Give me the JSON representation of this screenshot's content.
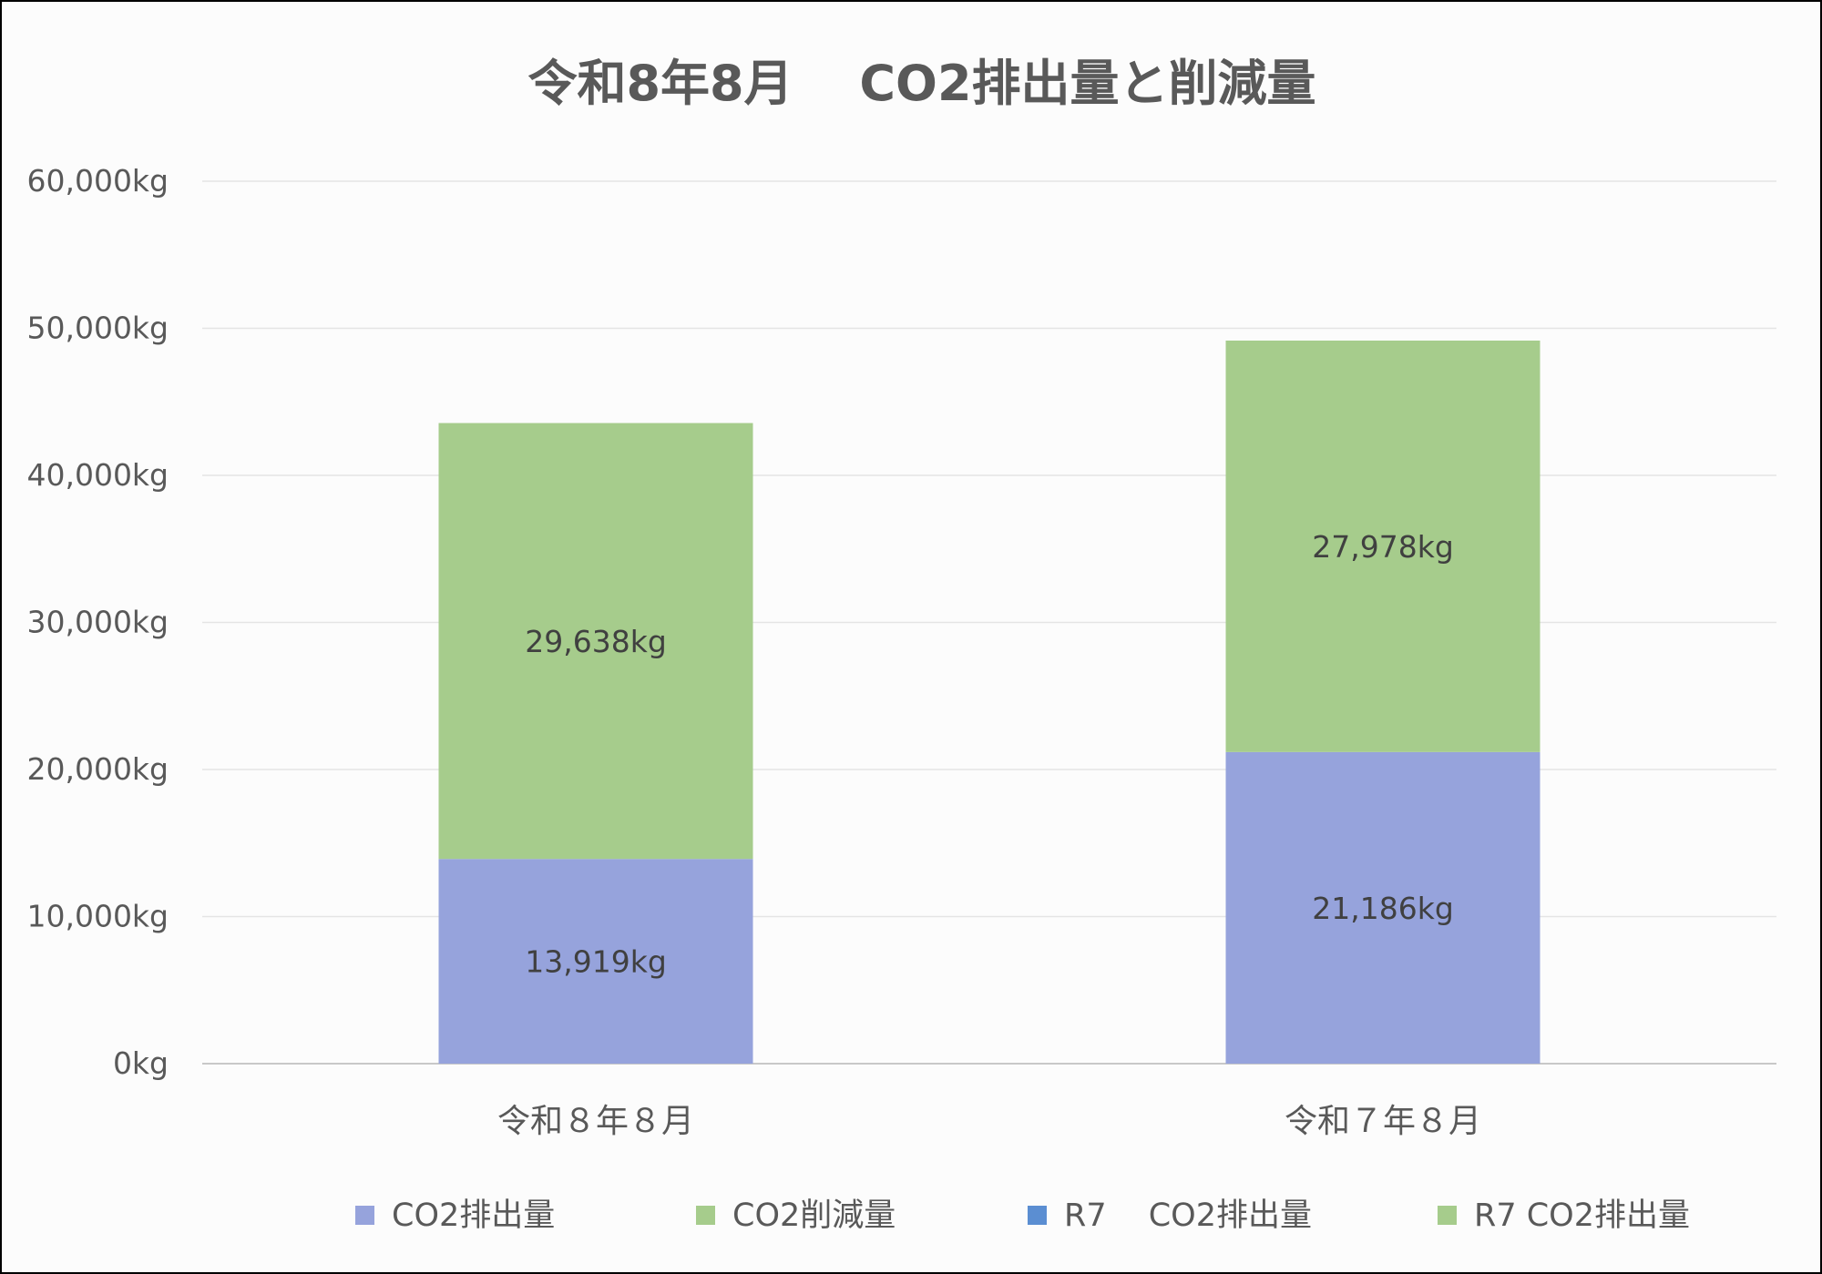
{
  "chart_data": {
    "type": "bar",
    "stacked": true,
    "title": "令和8年8月　 CO2排出量と削減量",
    "categories": [
      "令和８年８月",
      "令和７年８月"
    ],
    "series": [
      {
        "name": "CO2排出量",
        "color": "#96a3dc",
        "values": [
          13919,
          21186
        ]
      },
      {
        "name": "CO2削減量",
        "color": "#a6cc8c",
        "values": [
          29638,
          27978
        ]
      }
    ],
    "data_labels": [
      [
        "13,919kg",
        "21,186kg"
      ],
      [
        "29,638kg",
        "27,978kg"
      ]
    ],
    "y_ticks": [
      "0kg",
      "10,000kg",
      "20,000kg",
      "30,000kg",
      "40,000kg",
      "50,000kg",
      "60,000kg"
    ],
    "ylim": [
      0,
      60000
    ],
    "grid": true,
    "legend_position": "bottom",
    "legend": [
      {
        "label": "CO2排出量",
        "color": "#96a3dc"
      },
      {
        "label": "CO2削減量",
        "color": "#a6cc8c"
      },
      {
        "label": "R7　 CO2排出量",
        "color": "#5b8ed2"
      },
      {
        "label": "R7 CO2排出量",
        "color": "#a6cc8c"
      }
    ]
  }
}
